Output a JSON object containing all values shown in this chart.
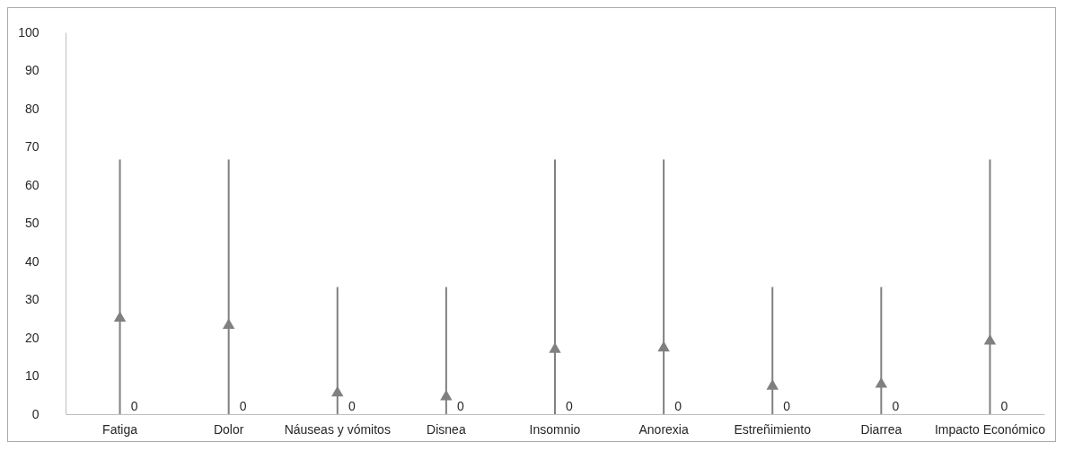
{
  "chart_data": {
    "type": "scatter",
    "categories": [
      "Fatiga",
      "Dolor",
      "Náuseas y vómitos",
      "Disnea",
      "Insomnio",
      "Anorexia",
      "Estreñimiento",
      "Diarrea",
      "Impacto Económico"
    ],
    "series": [
      {
        "marker": "triangle",
        "color": "#808080",
        "values": [
          25.6,
          23.7,
          6.0,
          5.0,
          17.4,
          17.8,
          7.8,
          8.3,
          19.6
        ],
        "errors": [
          [
            0,
            66.7
          ],
          [
            0,
            66.7
          ],
          [
            0,
            33.3
          ],
          [
            0,
            33.3
          ],
          [
            0,
            66.7
          ],
          [
            0,
            66.7
          ],
          [
            0,
            33.3
          ],
          [
            0,
            33.3
          ],
          [
            0,
            66.7
          ]
        ]
      }
    ],
    "annotations": [
      {
        "text": "0",
        "x": "Fatiga",
        "y": 0
      },
      {
        "text": "0",
        "x": "Dolor",
        "y": 0
      },
      {
        "text": "0",
        "x": "Náuseas y vómitos",
        "y": 0
      },
      {
        "text": "0",
        "x": "Disnea",
        "y": 0
      },
      {
        "text": "0",
        "x": "Insomnio",
        "y": 0
      },
      {
        "text": "0",
        "x": "Anorexia",
        "y": 0
      },
      {
        "text": "0",
        "x": "Estreñimiento",
        "y": 0
      },
      {
        "text": "0",
        "x": "Diarrea",
        "y": 0
      },
      {
        "text": "0",
        "x": "Impacto Económico",
        "y": 0
      }
    ],
    "ylim": [
      0,
      100
    ],
    "yticks": [
      0,
      10,
      20,
      30,
      40,
      50,
      60,
      70,
      80,
      90,
      100
    ],
    "grid": false
  }
}
